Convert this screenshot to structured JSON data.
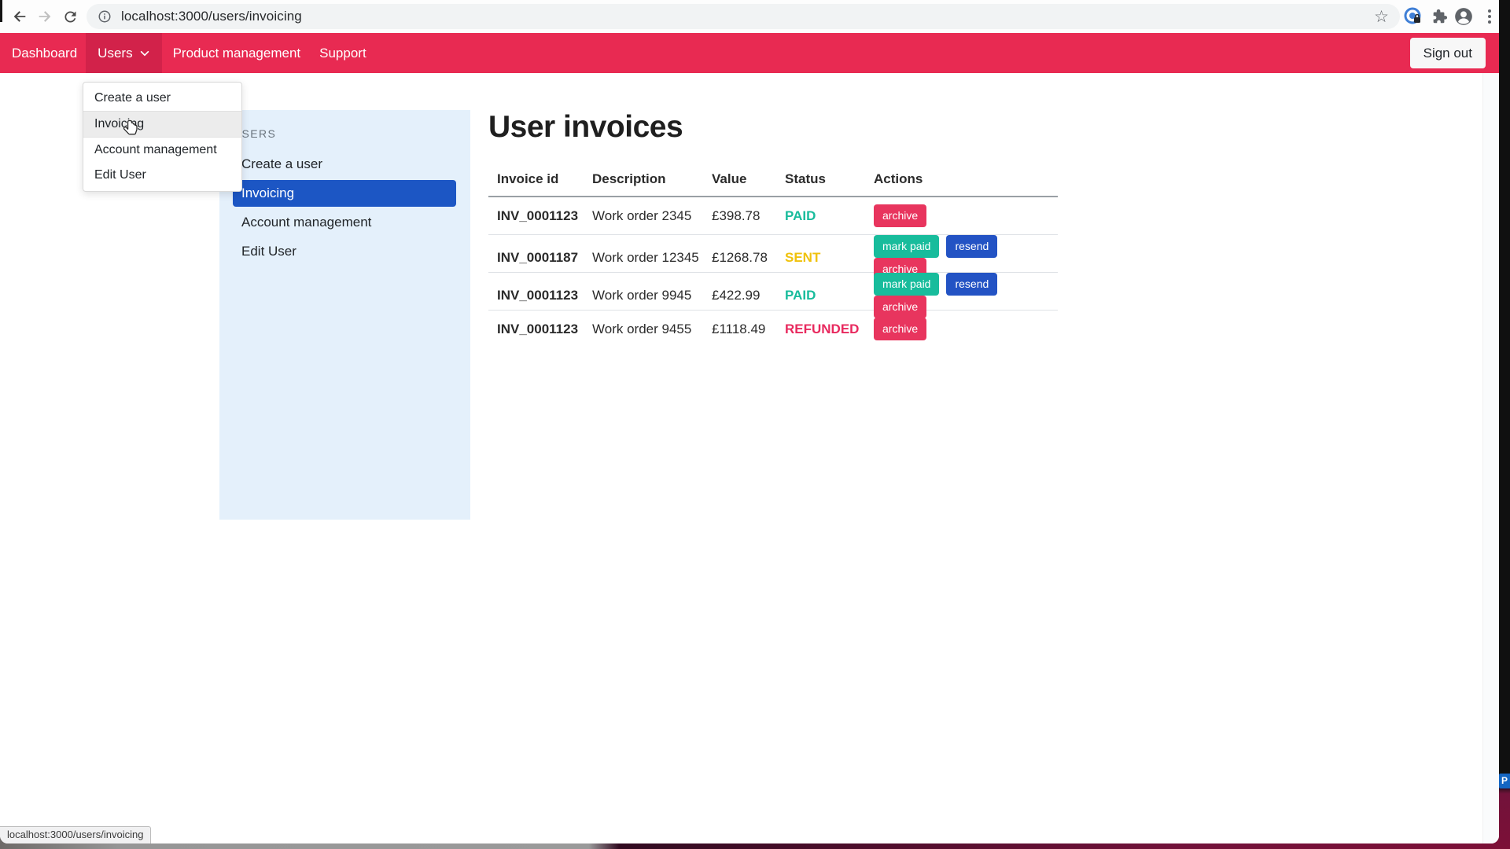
{
  "colors": {
    "navbar": "#e82a52",
    "navbar_active_item": "#d2224a",
    "primary_blue": "#2353c4",
    "success_teal": "#18bc9c",
    "danger_crimson": "#e8355e",
    "warning_yellow": "#f0c20c",
    "refunded_crimson": "#e8295e",
    "sidebar_bg": "#e4f0fb",
    "sidebar_selected_bg": "#1c56c4"
  },
  "browser": {
    "url": "localhost:3000/users/invoicing",
    "status_tooltip": "localhost:3000/users/invoicing",
    "icons": [
      "back-icon",
      "forward-icon",
      "reload-icon",
      "info-icon",
      "bookmark-star-icon",
      "privacy-extension-icon",
      "extensions-puzzle-icon",
      "profile-avatar-icon",
      "menu-kebab-icon"
    ]
  },
  "navbar": {
    "items": [
      {
        "label": "Dashboard",
        "active": false,
        "has_dropdown": false
      },
      {
        "label": "Users",
        "active": true,
        "has_dropdown": true
      },
      {
        "label": "Product management",
        "active": false,
        "has_dropdown": false
      },
      {
        "label": "Support",
        "active": false,
        "has_dropdown": false
      }
    ],
    "sign_out_label": "Sign out"
  },
  "users_dropdown": {
    "items": [
      "Create a user",
      "Invoicing",
      "Account management",
      "Edit User"
    ],
    "hovered_index": 1
  },
  "sidebar": {
    "heading": "USERS",
    "items": [
      "Create a user",
      "Invoicing",
      "Account management",
      "Edit User"
    ],
    "selected_index": 1
  },
  "main": {
    "title": "User invoices"
  },
  "invoice_table": {
    "headers": [
      "Invoice id",
      "Description",
      "Value",
      "Status",
      "Actions"
    ],
    "rows": [
      {
        "invoice_id": "INV_0001123",
        "description": "Work order 2345",
        "value": "£398.78",
        "status": "PAID",
        "status_color": "#18bc9c",
        "actions": [
          "archive"
        ]
      },
      {
        "invoice_id": "INV_0001187",
        "description": "Work order 12345",
        "value": "£1268.78",
        "status": "SENT",
        "status_color": "#f0c20c",
        "actions": [
          "mark paid",
          "resend",
          "archive"
        ]
      },
      {
        "invoice_id": "INV_0001123",
        "description": "Work order 9945",
        "value": "£422.99",
        "status": "PAID",
        "status_color": "#18bc9c",
        "actions": [
          "mark paid",
          "resend",
          "archive"
        ]
      },
      {
        "invoice_id": "INV_0001123",
        "description": "Work order 9455",
        "value": "£1118.49",
        "status": "REFUNDED",
        "status_color": "#e8295e",
        "actions": [
          "archive"
        ]
      }
    ]
  },
  "desktop": {
    "partial_badge": "P"
  }
}
